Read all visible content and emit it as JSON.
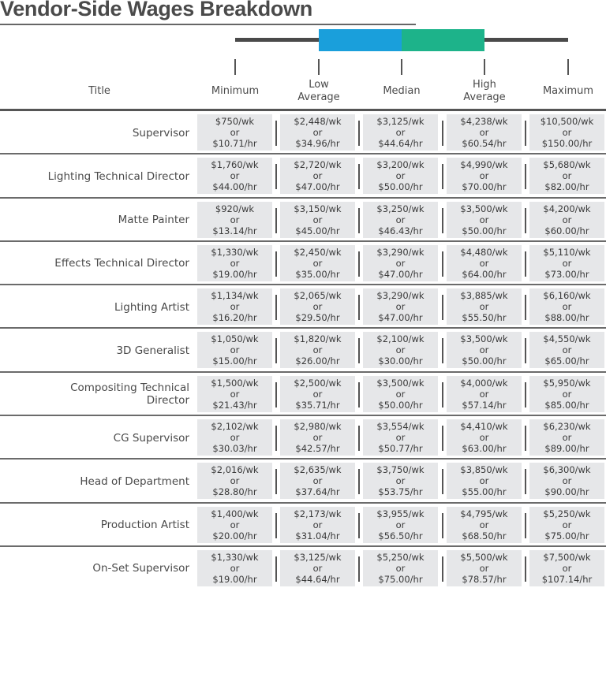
{
  "title": "Vendor-Side Wages Breakdown",
  "colors": {
    "low_to_median": "#1a9fdb",
    "median_to_high": "#1db38a",
    "whisker": "#4a4a4a",
    "cell_bg": "#e6e7e9"
  },
  "chart_data": {
    "type": "table",
    "title": "Vendor-Side Wages Breakdown",
    "legend_boxplot": [
      "Minimum",
      "Low Average",
      "Median",
      "High Average",
      "Maximum"
    ],
    "columns": [
      "Title",
      "Minimum",
      "Low\nAverage",
      "Median",
      "High\nAverage",
      "Maximum"
    ],
    "or_label": "or",
    "rows": [
      {
        "title": "Supervisor",
        "values": [
          [
            "$750/wk",
            "$10.71/hr"
          ],
          [
            "$2,448/wk",
            "$34.96/hr"
          ],
          [
            "$3,125/wk",
            "$44.64/hr"
          ],
          [
            "$4,238/wk",
            "$60.54/hr"
          ],
          [
            "$10,500/wk",
            "$150.00/hr"
          ]
        ]
      },
      {
        "title": "Lighting Technical Director",
        "values": [
          [
            "$1,760/wk",
            "$44.00/hr"
          ],
          [
            "$2,720/wk",
            "$47.00/hr"
          ],
          [
            "$3,200/wk",
            "$50.00/hr"
          ],
          [
            "$4,990/wk",
            "$70.00/hr"
          ],
          [
            "$5,680/wk",
            "$82.00/hr"
          ]
        ]
      },
      {
        "title": "Matte Painter",
        "values": [
          [
            "$920/wk",
            "$13.14/hr"
          ],
          [
            "$3,150/wk",
            "$45.00/hr"
          ],
          [
            "$3,250/wk",
            "$46.43/hr"
          ],
          [
            "$3,500/wk",
            "$50.00/hr"
          ],
          [
            "$4,200/wk",
            "$60.00/hr"
          ]
        ]
      },
      {
        "title": "Effects Technical Director",
        "values": [
          [
            "$1,330/wk",
            "$19.00/hr"
          ],
          [
            "$2,450/wk",
            "$35.00/hr"
          ],
          [
            "$3,290/wk",
            "$47.00/hr"
          ],
          [
            "$4,480/wk",
            "$64.00/hr"
          ],
          [
            "$5,110/wk",
            "$73.00/hr"
          ]
        ]
      },
      {
        "title": "Lighting Artist",
        "values": [
          [
            "$1,134/wk",
            "$16.20/hr"
          ],
          [
            "$2,065/wk",
            "$29.50/hr"
          ],
          [
            "$3,290/wk",
            "$47.00/hr"
          ],
          [
            "$3,885/wk",
            "$55.50/hr"
          ],
          [
            "$6,160/wk",
            "$88.00/hr"
          ]
        ]
      },
      {
        "title": "3D Generalist",
        "values": [
          [
            "$1,050/wk",
            "$15.00/hr"
          ],
          [
            "$1,820/wk",
            "$26.00/hr"
          ],
          [
            "$2,100/wk",
            "$30.00/hr"
          ],
          [
            "$3,500/wk",
            "$50.00/hr"
          ],
          [
            "$4,550/wk",
            "$65.00/hr"
          ]
        ]
      },
      {
        "title": "Compositing Technical Director",
        "values": [
          [
            "$1,500/wk",
            "$21.43/hr"
          ],
          [
            "$2,500/wk",
            "$35.71/hr"
          ],
          [
            "$3,500/wk",
            "$50.00/hr"
          ],
          [
            "$4,000/wk",
            "$57.14/hr"
          ],
          [
            "$5,950/wk",
            "$85.00/hr"
          ]
        ]
      },
      {
        "title": "CG Supervisor",
        "values": [
          [
            "$2,102/wk",
            "$30.03/hr"
          ],
          [
            "$2,980/wk",
            "$42.57/hr"
          ],
          [
            "$3,554/wk",
            "$50.77/hr"
          ],
          [
            "$4,410/wk",
            "$63.00/hr"
          ],
          [
            "$6,230/wk",
            "$89.00/hr"
          ]
        ]
      },
      {
        "title": "Head of Department",
        "values": [
          [
            "$2,016/wk",
            "$28.80/hr"
          ],
          [
            "$2,635/wk",
            "$37.64/hr"
          ],
          [
            "$3,750/wk",
            "$53.75/hr"
          ],
          [
            "$3,850/wk",
            "$55.00/hr"
          ],
          [
            "$6,300/wk",
            "$90.00/hr"
          ]
        ]
      },
      {
        "title": "Production Artist",
        "values": [
          [
            "$1,400/wk",
            "$20.00/hr"
          ],
          [
            "$2,173/wk",
            "$31.04/hr"
          ],
          [
            "$3,955/wk",
            "$56.50/hr"
          ],
          [
            "$4,795/wk",
            "$68.50/hr"
          ],
          [
            "$5,250/wk",
            "$75.00/hr"
          ]
        ]
      },
      {
        "title": "On-Set Supervisor",
        "values": [
          [
            "$1,330/wk",
            "$19.00/hr"
          ],
          [
            "$3,125/wk",
            "$44.64/hr"
          ],
          [
            "$5,250/wk",
            "$75.00/hr"
          ],
          [
            "$5,500/wk",
            "$78.57/hr"
          ],
          [
            "$7,500/wk",
            "$107.14/hr"
          ]
        ]
      }
    ]
  }
}
